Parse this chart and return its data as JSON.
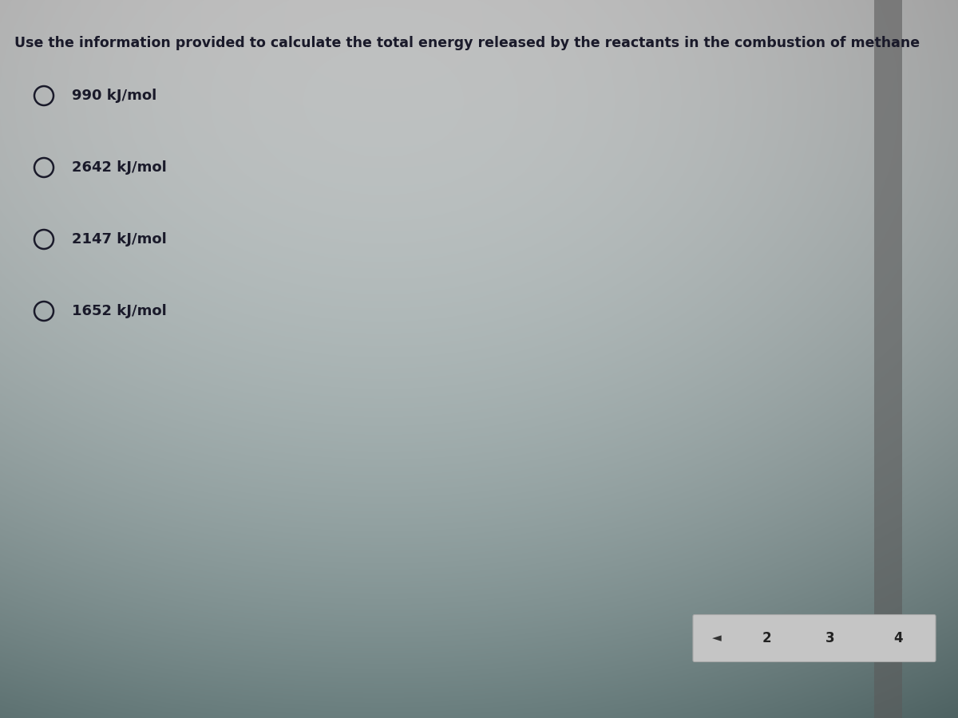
{
  "question": "Use the information provided to calculate the total energy released by the reactants in the combustion of methane",
  "options": [
    "990 kJ/mol",
    "2642 kJ/mol",
    "2147 kJ/mol",
    "1652 kJ/mol"
  ],
  "nav_numbers": [
    "2",
    "3",
    "4"
  ],
  "question_fontsize": 12.5,
  "option_fontsize": 13,
  "question_color": "#1a1a2a",
  "option_color": "#1a1a2a",
  "circle_color": "#1a1a2a",
  "nav_fontsize": 12
}
